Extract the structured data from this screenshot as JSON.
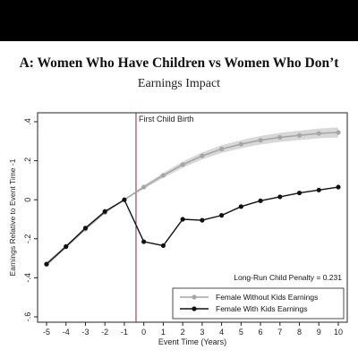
{
  "header": {
    "title": "A: Women Who Have Children vs Women Who Don’t",
    "subtitle": "Earnings Impact"
  },
  "colors": {
    "top_bar": "#000000",
    "series_without_kids": "#a6a6a6",
    "series_with_kids": "#111111",
    "event_line": "#8b2040",
    "ci_band": "#d4d4d4"
  },
  "chart_data": {
    "type": "line",
    "xlabel": "Event Time (Years)",
    "ylabel": "Earnings Relative to Event Time -1",
    "xlim": [
      -5,
      10
    ],
    "ylim": [
      -0.6,
      0.4
    ],
    "x_ticks": [
      -5,
      -4,
      -3,
      -2,
      -1,
      0,
      1,
      2,
      3,
      4,
      5,
      6,
      7,
      8,
      9,
      10
    ],
    "y_ticks": [
      -0.6,
      -0.4,
      -0.2,
      0,
      0.2,
      0.4
    ],
    "y_tick_labels": [
      "-.6",
      "-.4",
      "-.2",
      "0",
      ".2",
      ".4"
    ],
    "grid": false,
    "event_line": {
      "x": -0.4,
      "label": "First Child Birth"
    },
    "annotation": "Long-Run Child Penalty = 0.231",
    "legend_position": "bottom-right",
    "series": [
      {
        "name": "Female Without Kids Earnings",
        "x": [
          -5,
          -4,
          -3,
          -2,
          -1,
          0,
          1,
          2,
          3,
          4,
          5,
          6,
          7,
          8,
          9,
          10
        ],
        "values": [
          -0.33,
          -0.24,
          -0.15,
          -0.065,
          0,
          0.065,
          0.125,
          0.18,
          0.225,
          0.26,
          0.285,
          0.305,
          0.32,
          0.33,
          0.34,
          0.345
        ],
        "ci_halfwidth": [
          0.012,
          0.01,
          0.008,
          0.006,
          0,
          0.01,
          0.013,
          0.016,
          0.018,
          0.02,
          0.021,
          0.022,
          0.023,
          0.024,
          0.025,
          0.026
        ]
      },
      {
        "name": "Female With Kids Earnings",
        "x": [
          -5,
          -4,
          -3,
          -2,
          -1,
          0,
          1,
          2,
          3,
          4,
          5,
          6,
          7,
          8,
          9,
          10
        ],
        "values": [
          -0.33,
          -0.24,
          -0.145,
          -0.06,
          0,
          -0.215,
          -0.235,
          -0.1,
          -0.105,
          -0.08,
          -0.035,
          -0.005,
          0.015,
          0.035,
          0.05,
          0.065
        ]
      }
    ]
  }
}
